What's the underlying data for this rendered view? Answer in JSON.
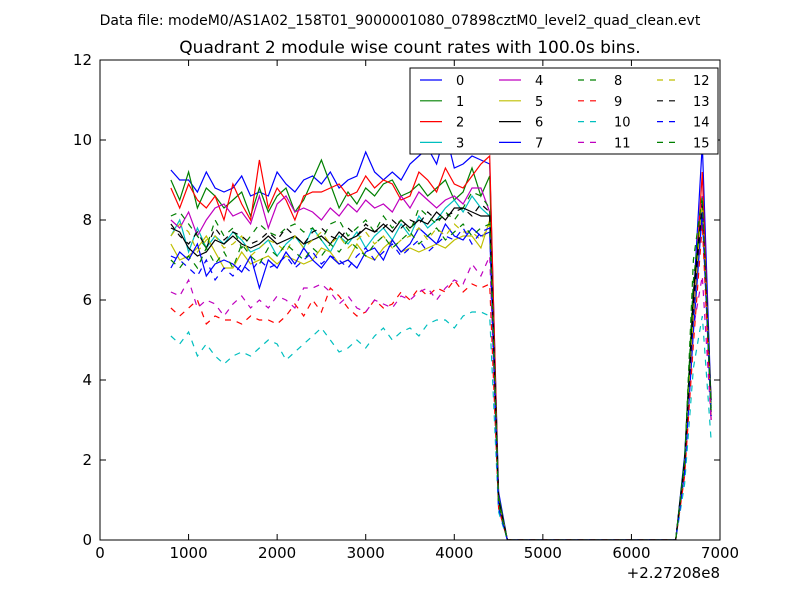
{
  "suptitle": "Data file: modeM0/AS1A02_158T01_9000001080_07898cztM0_level2_quad_clean.evt",
  "chart_data": {
    "type": "line",
    "title": "Quadrant 2 module wise count rates with 100.0s bins.",
    "xlabel": "",
    "ylabel": "",
    "x_offset_text": "+2.27208e8",
    "xlim": [
      0,
      7000
    ],
    "ylim": [
      0,
      12
    ],
    "xticks": [
      0,
      1000,
      2000,
      3000,
      4000,
      5000,
      6000,
      7000
    ],
    "yticks": [
      0,
      2,
      4,
      6,
      8,
      10,
      12
    ],
    "grid": false,
    "legend_position": "top-right",
    "legend_columns": 4,
    "x": [
      800,
      900,
      1000,
      1100,
      1200,
      1300,
      1400,
      1500,
      1600,
      1700,
      1800,
      1900,
      2000,
      2100,
      2200,
      2300,
      2400,
      2500,
      2600,
      2700,
      2800,
      2900,
      3000,
      3100,
      3200,
      3300,
      3400,
      3500,
      3600,
      3700,
      3800,
      3900,
      4000,
      4100,
      4200,
      4300,
      4400,
      4500,
      4600,
      4700,
      4800,
      4900,
      5000,
      5100,
      5200,
      5300,
      5400,
      5500,
      5600,
      5700,
      5800,
      5900,
      6000,
      6100,
      6200,
      6300,
      6400,
      6500,
      6600,
      6700,
      6800,
      6900
    ],
    "series": [
      {
        "name": "0",
        "color": "#0000ff",
        "dash": "solid",
        "values": [
          9.25,
          9.0,
          9.0,
          8.7,
          9.2,
          8.8,
          8.7,
          8.8,
          9.1,
          8.6,
          8.7,
          8.6,
          9.2,
          8.9,
          8.7,
          9.0,
          9.1,
          8.9,
          9.2,
          8.8,
          9.0,
          9.1,
          9.7,
          9.2,
          9.0,
          9.2,
          9.0,
          9.4,
          9.6,
          9.8,
          9.4,
          10.2,
          9.3,
          9.4,
          9.6,
          9.5,
          9.4,
          1.2,
          0,
          0,
          0,
          0,
          0,
          0,
          0,
          0,
          0,
          0,
          0,
          0,
          0,
          0,
          0,
          0,
          0,
          0,
          0,
          0,
          2.1,
          6.0,
          9.9,
          3.4
        ]
      },
      {
        "name": "1",
        "color": "#008000",
        "dash": "solid",
        "values": [
          9.0,
          8.5,
          9.2,
          8.3,
          8.8,
          8.6,
          8.3,
          8.5,
          8.7,
          8.1,
          8.8,
          8.2,
          8.6,
          8.8,
          8.2,
          8.5,
          9.0,
          9.5,
          8.9,
          8.3,
          8.7,
          8.4,
          8.8,
          8.6,
          8.9,
          9.0,
          8.6,
          8.7,
          8.9,
          8.6,
          8.8,
          9.0,
          8.5,
          8.7,
          9.3,
          8.6,
          9.1,
          1.1,
          0,
          0,
          0,
          0,
          0,
          0,
          0,
          0,
          0,
          0,
          0,
          0,
          0,
          0,
          0,
          0,
          0,
          0,
          0,
          0,
          2.0,
          5.8,
          8.5,
          3.2
        ]
      },
      {
        "name": "2",
        "color": "#ff0000",
        "dash": "solid",
        "values": [
          8.8,
          8.3,
          8.9,
          8.5,
          8.3,
          8.6,
          8.0,
          8.9,
          8.4,
          8.0,
          9.5,
          8.3,
          8.8,
          8.5,
          8.0,
          8.6,
          8.7,
          8.7,
          8.8,
          8.9,
          8.6,
          8.7,
          9.1,
          8.8,
          9.0,
          8.9,
          8.5,
          8.6,
          9.2,
          9.0,
          8.7,
          9.3,
          8.9,
          8.8,
          9.1,
          9.4,
          9.6,
          1.0,
          0,
          0,
          0,
          0,
          0,
          0,
          0,
          0,
          0,
          0,
          0,
          0,
          0,
          0,
          0,
          0,
          0,
          0,
          0,
          0,
          1.9,
          5.6,
          9.2,
          3.0
        ]
      },
      {
        "name": "3",
        "color": "#00bfbf",
        "dash": "solid",
        "values": [
          7.6,
          8.0,
          7.2,
          7.8,
          7.3,
          7.6,
          7.4,
          7.7,
          7.5,
          7.2,
          7.3,
          7.5,
          7.1,
          7.4,
          7.6,
          7.3,
          7.8,
          7.5,
          7.2,
          7.6,
          7.4,
          7.7,
          7.3,
          7.6,
          7.8,
          7.5,
          7.9,
          7.6,
          8.1,
          7.8,
          8.0,
          8.3,
          8.5,
          8.2,
          8.6,
          8.3,
          8.1,
          0.9,
          0,
          0,
          0,
          0,
          0,
          0,
          0,
          0,
          0,
          0,
          0,
          0,
          0,
          0,
          0,
          0,
          0,
          0,
          0,
          0,
          1.8,
          5.5,
          8.4,
          3.1
        ]
      },
      {
        "name": "4",
        "color": "#bf00bf",
        "dash": "solid",
        "values": [
          8.0,
          7.8,
          8.2,
          7.6,
          8.0,
          8.3,
          8.4,
          8.1,
          8.2,
          7.9,
          8.6,
          7.8,
          8.4,
          8.6,
          8.2,
          8.3,
          8.2,
          8.0,
          8.3,
          8.1,
          8.4,
          8.2,
          8.5,
          8.3,
          8.4,
          8.2,
          8.6,
          8.3,
          8.7,
          8.5,
          8.3,
          8.5,
          8.6,
          8.4,
          8.8,
          8.8,
          8.2,
          1.0,
          0,
          0,
          0,
          0,
          0,
          0,
          0,
          0,
          0,
          0,
          0,
          0,
          0,
          0,
          0,
          0,
          0,
          0,
          0,
          0,
          1.9,
          5.7,
          8.6,
          3.0
        ]
      },
      {
        "name": "5",
        "color": "#bfbf00",
        "dash": "solid",
        "values": [
          7.4,
          7.0,
          7.1,
          7.3,
          7.6,
          7.2,
          6.8,
          6.8,
          7.2,
          6.9,
          7.0,
          7.1,
          6.9,
          7.1,
          7.0,
          6.9,
          7.0,
          7.3,
          7.2,
          6.9,
          7.0,
          7.4,
          7.1,
          7.0,
          7.3,
          7.5,
          7.2,
          7.3,
          7.2,
          7.3,
          7.4,
          7.3,
          7.5,
          7.6,
          7.6,
          7.3,
          8.0,
          0.9,
          0,
          0,
          0,
          0,
          0,
          0,
          0,
          0,
          0,
          0,
          0,
          0,
          0,
          0,
          0,
          0,
          0,
          0,
          0,
          0,
          1.8,
          5.4,
          8.3,
          3.1
        ]
      },
      {
        "name": "6",
        "color": "#000000",
        "dash": "solid",
        "values": [
          7.8,
          7.7,
          7.3,
          7.1,
          7.2,
          7.5,
          7.4,
          7.6,
          7.4,
          7.3,
          7.4,
          7.6,
          7.4,
          7.5,
          7.6,
          7.4,
          7.5,
          7.6,
          7.4,
          7.7,
          7.5,
          7.6,
          7.8,
          7.7,
          7.9,
          7.7,
          8.0,
          7.8,
          8.0,
          7.9,
          8.2,
          8.0,
          8.3,
          8.3,
          8.2,
          8.1,
          8.1,
          1.0,
          0,
          0,
          0,
          0,
          0,
          0,
          0,
          0,
          0,
          0,
          0,
          0,
          0,
          0,
          0,
          0,
          0,
          0,
          0,
          0,
          2.0,
          6.2,
          8.4,
          3.5
        ]
      },
      {
        "name": "7",
        "color": "#0000ff",
        "dash": "solid",
        "values": [
          6.8,
          7.2,
          7.0,
          7.4,
          6.6,
          6.9,
          7.0,
          6.9,
          6.7,
          7.1,
          6.3,
          7.0,
          6.8,
          7.2,
          6.9,
          7.3,
          7.0,
          6.8,
          7.1,
          6.9,
          7.0,
          6.8,
          7.2,
          7.3,
          7.0,
          7.5,
          7.2,
          7.4,
          7.8,
          7.6,
          7.4,
          7.9,
          7.6,
          7.5,
          7.8,
          7.6,
          7.7,
          0.8,
          0,
          0,
          0,
          0,
          0,
          0,
          0,
          0,
          0,
          0,
          0,
          0,
          0,
          0,
          0,
          0,
          0,
          0,
          0,
          0,
          1.8,
          5.5,
          8.2,
          3.2
        ]
      },
      {
        "name": "8",
        "color": "#008000",
        "dash": "dashed",
        "values": [
          8.1,
          8.2,
          7.9,
          7.6,
          7.3,
          8.0,
          7.6,
          7.8,
          7.3,
          7.6,
          7.9,
          7.7,
          7.6,
          7.8,
          7.9,
          7.7,
          7.8,
          7.5,
          7.9,
          8.0,
          7.6,
          7.8,
          8.0,
          7.7,
          8.1,
          7.8,
          8.0,
          7.7,
          8.3,
          8.1,
          7.9,
          8.2,
          8.0,
          8.3,
          8.7,
          8.6,
          8.3,
          1.0,
          0,
          0,
          0,
          0,
          0,
          0,
          0,
          0,
          0,
          0,
          0,
          0,
          0,
          0,
          0,
          0,
          0,
          0,
          0,
          0,
          2.0,
          6.5,
          8.4,
          3.3
        ]
      },
      {
        "name": "9",
        "color": "#ff0000",
        "dash": "dashed",
        "values": [
          5.8,
          5.6,
          5.8,
          6.0,
          5.4,
          5.6,
          5.5,
          5.5,
          5.4,
          5.6,
          5.5,
          5.5,
          5.4,
          5.6,
          5.9,
          5.6,
          6.0,
          5.7,
          6.3,
          6.1,
          5.8,
          5.6,
          5.7,
          6.0,
          5.8,
          5.9,
          6.2,
          6.0,
          6.3,
          6.1,
          6.3,
          6.2,
          6.5,
          6.2,
          6.4,
          6.3,
          6.4,
          0.8,
          0,
          0,
          0,
          0,
          0,
          0,
          0,
          0,
          0,
          0,
          0,
          0,
          0,
          0,
          0,
          0,
          0,
          0,
          0,
          0,
          1.6,
          4.9,
          7.9,
          3.0
        ]
      },
      {
        "name": "10",
        "color": "#00bfbf",
        "dash": "dashed",
        "values": [
          5.1,
          4.9,
          5.2,
          4.6,
          4.9,
          4.6,
          4.4,
          4.6,
          4.7,
          4.6,
          4.8,
          5.0,
          4.9,
          4.5,
          4.7,
          4.9,
          5.1,
          5.3,
          5.0,
          4.7,
          4.8,
          5.0,
          4.8,
          5.1,
          5.3,
          5.0,
          5.2,
          5.3,
          5.1,
          5.4,
          5.5,
          5.5,
          5.3,
          5.6,
          5.7,
          5.7,
          5.6,
          0.7,
          0,
          0,
          0,
          0,
          0,
          0,
          0,
          0,
          0,
          0,
          0,
          0,
          0,
          0,
          0,
          0,
          0,
          0,
          0,
          0,
          1.4,
          4.3,
          5.6,
          2.5
        ]
      },
      {
        "name": "11",
        "color": "#bf00bf",
        "dash": "dashed",
        "values": [
          6.2,
          6.1,
          6.5,
          5.8,
          6.0,
          5.9,
          5.6,
          5.9,
          6.1,
          5.8,
          6.0,
          5.8,
          6.1,
          6.0,
          5.8,
          6.3,
          6.3,
          6.4,
          6.2,
          5.9,
          6.1,
          5.8,
          5.7,
          6.0,
          5.9,
          5.8,
          6.1,
          6.0,
          6.2,
          6.3,
          6.0,
          6.3,
          6.5,
          6.4,
          6.9,
          6.6,
          7.1,
          0.9,
          0,
          0,
          0,
          0,
          0,
          0,
          0,
          0,
          0,
          0,
          0,
          0,
          0,
          0,
          0,
          0,
          0,
          0,
          0,
          0,
          1.7,
          5.3,
          6.6,
          3.0
        ]
      },
      {
        "name": "12",
        "color": "#bfbf00",
        "dash": "dashed",
        "values": [
          7.6,
          7.9,
          7.7,
          7.2,
          7.5,
          7.6,
          7.3,
          7.4,
          7.6,
          7.1,
          7.3,
          7.5,
          7.4,
          7.2,
          7.6,
          7.3,
          7.5,
          7.7,
          7.4,
          7.6,
          7.3,
          7.5,
          7.7,
          7.4,
          7.6,
          7.3,
          7.5,
          7.6,
          7.8,
          7.5,
          7.8,
          7.6,
          7.9,
          7.7,
          7.7,
          7.5,
          7.9,
          0.9,
          0,
          0,
          0,
          0,
          0,
          0,
          0,
          0,
          0,
          0,
          0,
          0,
          0,
          0,
          0,
          0,
          0,
          0,
          0,
          0,
          1.8,
          5.6,
          8.5,
          3.2
        ]
      },
      {
        "name": "13",
        "color": "#000000",
        "dash": "dashed",
        "values": [
          7.9,
          7.6,
          7.4,
          7.7,
          7.3,
          7.8,
          7.5,
          7.7,
          7.6,
          7.4,
          7.5,
          7.7,
          7.5,
          7.8,
          7.6,
          7.4,
          7.7,
          7.8,
          7.6,
          7.5,
          7.8,
          7.6,
          7.9,
          7.7,
          7.8,
          8.0,
          7.8,
          8.0,
          7.9,
          8.2,
          8.0,
          8.1,
          8.2,
          8.3,
          8.1,
          8.4,
          8.2,
          1.0,
          0,
          0,
          0,
          0,
          0,
          0,
          0,
          0,
          0,
          0,
          0,
          0,
          0,
          0,
          0,
          0,
          0,
          0,
          0,
          0,
          1.9,
          5.9,
          8.4,
          3.3
        ]
      },
      {
        "name": "14",
        "color": "#0000ff",
        "dash": "dashed",
        "values": [
          7.1,
          7.0,
          6.8,
          6.6,
          7.0,
          6.5,
          6.8,
          6.6,
          6.9,
          6.7,
          7.0,
          6.8,
          6.9,
          7.1,
          6.8,
          7.0,
          7.2,
          6.9,
          7.1,
          7.0,
          6.8,
          7.1,
          7.3,
          7.0,
          7.2,
          7.4,
          7.1,
          7.3,
          7.5,
          7.2,
          7.4,
          7.6,
          7.5,
          7.8,
          7.4,
          7.7,
          7.8,
          0.8,
          0,
          0,
          0,
          0,
          0,
          0,
          0,
          0,
          0,
          0,
          0,
          0,
          0,
          0,
          0,
          0,
          0,
          0,
          0,
          0,
          1.7,
          5.2,
          8.2,
          3.1
        ]
      },
      {
        "name": "15",
        "color": "#008000",
        "dash": "dashed",
        "values": [
          7.0,
          6.8,
          7.1,
          6.8,
          7.3,
          6.9,
          7.2,
          6.8,
          7.4,
          7.1,
          6.9,
          7.3,
          7.1,
          7.4,
          7.2,
          7.0,
          7.3,
          7.1,
          7.4,
          7.2,
          7.5,
          7.3,
          7.1,
          7.4,
          7.6,
          7.3,
          7.5,
          7.7,
          7.4,
          7.6,
          7.8,
          7.5,
          7.7,
          7.9,
          7.6,
          7.8,
          7.9,
          0.9,
          0,
          0,
          0,
          0,
          0,
          0,
          0,
          0,
          0,
          0,
          0,
          0,
          0,
          0,
          0,
          0,
          0,
          0,
          0,
          0,
          1.9,
          7.0,
          8.6,
          3.2
        ]
      }
    ]
  }
}
